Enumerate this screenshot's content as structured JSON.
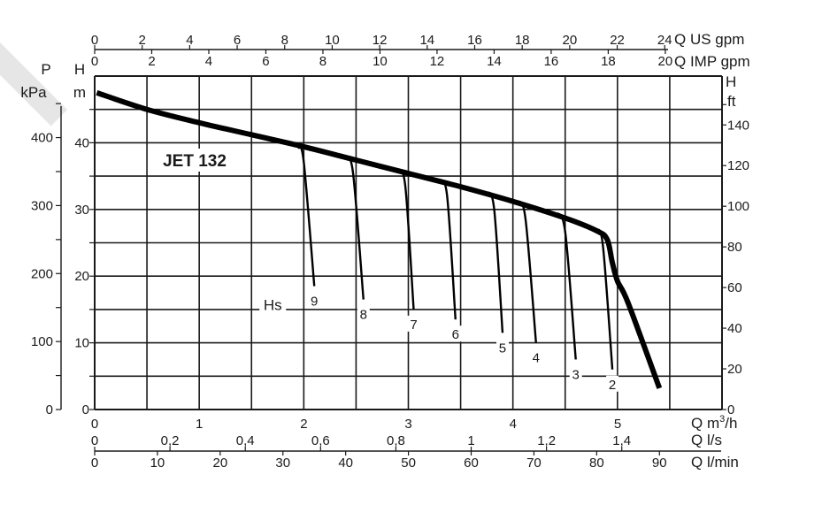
{
  "chart_data": {
    "type": "line",
    "title": "JET 132",
    "model_label": "JET 132",
    "hs_label": "Hs",
    "xlabel": "Q m3/h",
    "ylabel": "H m",
    "grid": true,
    "xlim": [
      0,
      6
    ],
    "ylim": [
      0,
      48
    ],
    "axes": {
      "left_pressure": {
        "label_top": "P",
        "label_unit": "kPa",
        "ticks": [
          0,
          100,
          200,
          300,
          400
        ]
      },
      "left_head": {
        "label_top": "H",
        "label_unit": "m",
        "ticks": [
          0,
          10,
          20,
          30,
          40
        ]
      },
      "right_head_ft": {
        "label_top": "H",
        "label_unit": "ft",
        "ticks": [
          0,
          20,
          40,
          60,
          80,
          100,
          120,
          140
        ]
      },
      "top_us_gpm": {
        "label": "Q US gpm",
        "ticks": [
          0,
          2,
          4,
          6,
          8,
          10,
          12,
          14,
          16,
          18,
          20,
          22,
          24
        ]
      },
      "top_imp_gpm": {
        "label": "Q IMP gpm",
        "ticks": [
          0,
          2,
          4,
          6,
          8,
          10,
          12,
          14,
          16,
          18,
          20
        ]
      },
      "bottom_m3h": {
        "label": "Q m",
        "label_sup": "3",
        "label_suffix": "/h",
        "ticks": [
          "0",
          "1",
          "2",
          "3",
          "4",
          "5"
        ]
      },
      "bottom_ls": {
        "label": "Q l/s",
        "ticks": [
          "0",
          "0,2",
          "0,4",
          "0,6",
          "0,8",
          "1",
          "1,2",
          "1,4"
        ]
      },
      "bottom_lmin": {
        "label": "Q l/min",
        "ticks": [
          "0",
          "10",
          "20",
          "30",
          "40",
          "50",
          "60",
          "70",
          "80",
          "90"
        ]
      }
    },
    "series": [
      {
        "name": "Pump curve",
        "x": [
          0.02,
          0.5,
          1.0,
          1.5,
          2.0,
          2.5,
          3.0,
          3.5,
          4.0,
          4.5,
          4.8,
          4.9,
          4.95,
          5.0,
          5.1,
          5.4
        ],
        "y": [
          47.5,
          45.0,
          43.0,
          41.2,
          39.4,
          37.4,
          35.4,
          33.4,
          31.2,
          28.7,
          26.8,
          25.5,
          22.0,
          19.2,
          16.0,
          3.2
        ]
      },
      {
        "name": "Hs 9",
        "x": [
          1.95,
          2.0,
          2.1
        ],
        "y": [
          39.3,
          37.0,
          18.5
        ]
      },
      {
        "name": "Hs 8",
        "x": [
          2.4,
          2.47,
          2.57
        ],
        "y": [
          37.6,
          35.5,
          16.5
        ]
      },
      {
        "name": "Hs 7",
        "x": [
          2.9,
          2.97,
          3.05
        ],
        "y": [
          35.8,
          33.5,
          15.0
        ]
      },
      {
        "name": "Hs 6",
        "x": [
          3.3,
          3.37,
          3.45
        ],
        "y": [
          34.3,
          32.0,
          13.5
        ]
      },
      {
        "name": "Hs 5",
        "x": [
          3.75,
          3.82,
          3.9
        ],
        "y": [
          32.6,
          30.0,
          11.5
        ]
      },
      {
        "name": "Hs 4",
        "x": [
          4.05,
          4.12,
          4.22
        ],
        "y": [
          31.3,
          28.5,
          10.0
        ]
      },
      {
        "name": "Hs 3",
        "x": [
          4.42,
          4.5,
          4.6
        ],
        "y": [
          29.5,
          26.5,
          7.5
        ]
      },
      {
        "name": "Hs 2",
        "x": [
          4.8,
          4.86,
          4.95
        ],
        "y": [
          27.0,
          24.5,
          6.0
        ]
      }
    ],
    "curve_labels": [
      "9",
      "8",
      "7",
      "6",
      "5",
      "4",
      "3",
      "2"
    ]
  }
}
